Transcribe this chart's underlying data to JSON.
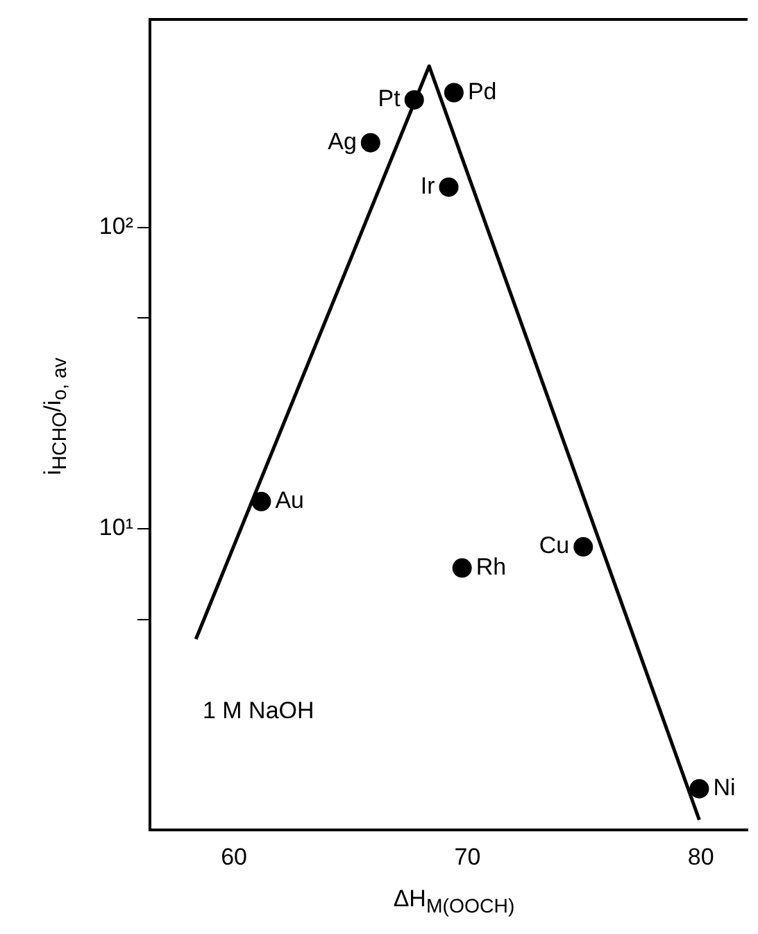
{
  "chart_data": {
    "type": "scatter",
    "xlabel": "ΔH$_{M(OOCH)}$",
    "ylabel": "i$_{HCHO}$/i$_{o, av}$",
    "log": "y",
    "xlim": [
      56.4,
      82
    ],
    "xticks": [
      60,
      70,
      80
    ],
    "ylim": [
      1,
      490
    ],
    "yticks": [
      {
        "value": 5,
        "label": null
      },
      {
        "value": 10,
        "label": "10¹"
      },
      {
        "value": 50,
        "label": null
      },
      {
        "value": 100,
        "label": "10²"
      }
    ],
    "series": [
      {
        "type": "line",
        "color": "#000000",
        "marker": "none",
        "x": [
          58.37,
          68.36,
          79.93
        ],
        "values": [
          4.3,
          343,
          1.08
        ]
      },
      {
        "color": "#000000",
        "marker": "circle",
        "x": [
          67.72,
          69.42,
          65.85,
          69.2,
          61.17,
          69.77,
          74.96,
          79.93
        ],
        "values": [
          265,
          280,
          191,
          136,
          12.3,
          7.4,
          8.7,
          1.37
        ]
      }
    ],
    "annotations": [
      {
        "text": "Pt",
        "x": 67.72,
        "y": 265
      },
      {
        "text": "Pd",
        "x": 69.42,
        "y": 280
      },
      {
        "text": "Ag",
        "x": 65.85,
        "y": 191
      },
      {
        "text": "Ir",
        "x": 69.2,
        "y": 136
      },
      {
        "text": "Au",
        "x": 61.17,
        "y": 12.3
      },
      {
        "text": "Rh",
        "x": 69.77,
        "y": 7.4
      },
      {
        "text": "Cu",
        "x": 74.96,
        "y": 8.7
      },
      {
        "text": "Ni",
        "x": 79.93,
        "y": 1.37
      },
      "1 M NaOH"
    ]
  }
}
